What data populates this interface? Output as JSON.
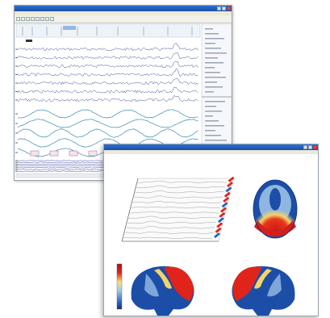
{
  "eeg_window": {
    "title": "",
    "menu": [],
    "channels": 19,
    "colors": {
      "titlebar": "#1f58b8",
      "trace": "#2a3a9a",
      "wave": "#3a8ab0",
      "panel": "#eef3f8",
      "marker": "#c84040"
    }
  },
  "topo_window": {
    "title": "",
    "header_label": "",
    "header_sublabel": "",
    "axis_caption": "",
    "view_label_left": "",
    "view_label_right": "",
    "colors": {
      "titlebar": "#1f58b8",
      "high": "#e0241b",
      "mid": "#f7e07a",
      "low": "#1c4ea8",
      "neutral": "#8fb6e0"
    }
  }
}
